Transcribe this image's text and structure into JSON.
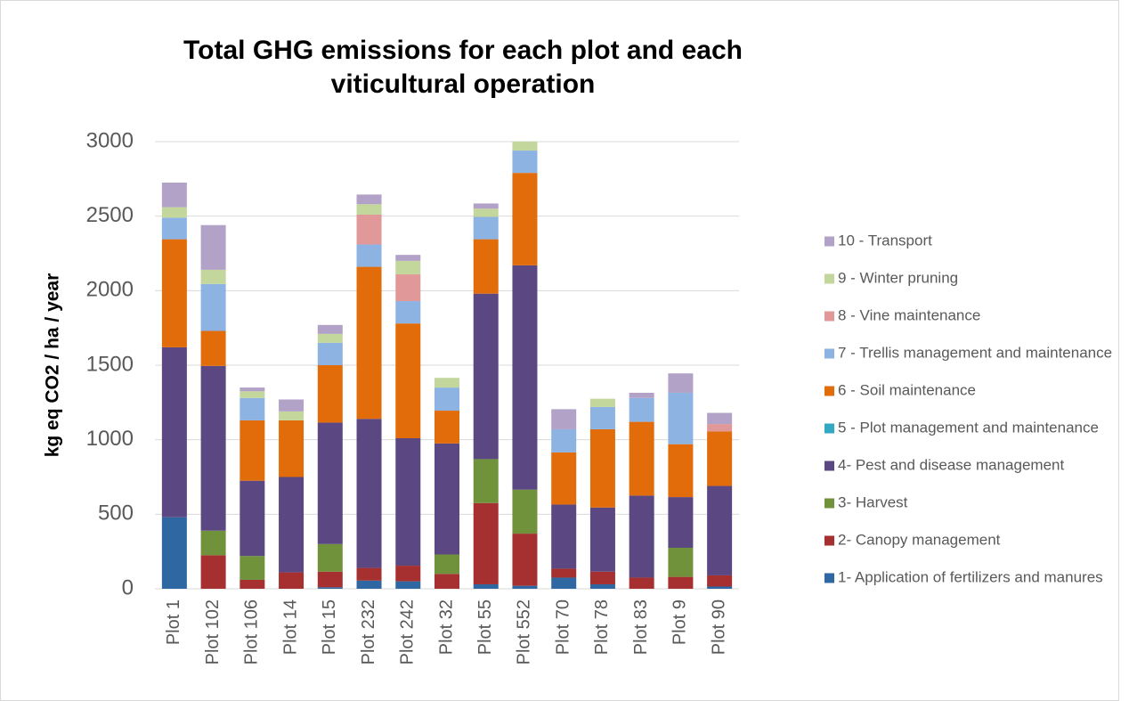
{
  "chart_data": {
    "type": "stacked_bar",
    "title": "Total GHG emissions for each plot and each viticultural operation",
    "y_label": "kg eq CO2 / ha / year",
    "categories": [
      "Plot 1",
      "Plot 102",
      "Plot 106",
      "Plot 14",
      "Plot 15",
      "Plot 232",
      "Plot 242",
      "Plot 32",
      "Plot 55",
      "Plot 552",
      "Plot 70",
      "Plot 78",
      "Plot 83",
      "Plot 9",
      "Plot 90"
    ],
    "series": [
      {
        "name": "1- Application of fertilizers and manures",
        "color": "#2f67a3",
        "values": [
          480,
          0,
          0,
          0,
          10,
          55,
          50,
          0,
          30,
          20,
          75,
          30,
          0,
          0,
          15
        ]
      },
      {
        "name": "2- Canopy management",
        "color": "#a5302f",
        "values": [
          0,
          225,
          60,
          110,
          105,
          85,
          105,
          100,
          545,
          350,
          60,
          85,
          75,
          80,
          75
        ]
      },
      {
        "name": "3- Harvest",
        "color": "#70923a",
        "values": [
          0,
          165,
          160,
          0,
          185,
          0,
          0,
          130,
          295,
          295,
          0,
          0,
          0,
          195,
          0
        ]
      },
      {
        "name": "4- Pest and disease management",
        "color": "#5b4781",
        "values": [
          1140,
          1105,
          505,
          640,
          815,
          1000,
          855,
          745,
          1110,
          1505,
          430,
          430,
          550,
          340,
          600
        ]
      },
      {
        "name": "5 - Plot management and maintenance",
        "color": "#31a9c3",
        "values": [
          0,
          0,
          0,
          0,
          0,
          0,
          0,
          0,
          0,
          0,
          0,
          0,
          0,
          0,
          0
        ]
      },
      {
        "name": "6 - Soil maintenance",
        "color": "#e36c0a",
        "values": [
          725,
          235,
          405,
          380,
          385,
          1020,
          770,
          220,
          365,
          620,
          350,
          525,
          495,
          355,
          365
        ]
      },
      {
        "name": "7 - Trellis management and maintenance",
        "color": "#8db3e2",
        "values": [
          145,
          315,
          150,
          0,
          150,
          150,
          150,
          155,
          150,
          150,
          155,
          150,
          160,
          345,
          0
        ]
      },
      {
        "name": "8 - Vine maintenance",
        "color": "#e09898",
        "values": [
          0,
          0,
          0,
          0,
          0,
          200,
          180,
          0,
          0,
          0,
          0,
          0,
          0,
          0,
          50
        ]
      },
      {
        "name": "9 - Winter pruning",
        "color": "#c3d69b",
        "values": [
          70,
          95,
          45,
          60,
          60,
          70,
          90,
          65,
          55,
          60,
          0,
          55,
          0,
          0,
          0
        ]
      },
      {
        "name": "10 - Transport",
        "color": "#b3a2c7",
        "values": [
          165,
          300,
          25,
          80,
          60,
          65,
          40,
          0,
          35,
          0,
          135,
          0,
          35,
          130,
          75
        ]
      }
    ],
    "ylim": [
      0,
      3000
    ],
    "yticks": [
      0,
      500,
      1000,
      1500,
      2000,
      2500,
      3000
    ],
    "grid": true
  }
}
